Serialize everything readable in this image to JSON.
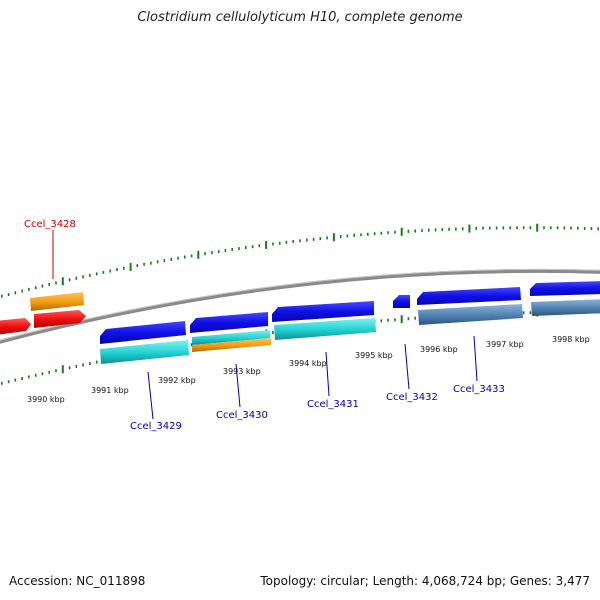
{
  "title": "Clostridium cellulolyticum H10, complete genome",
  "footer": {
    "accession": "Accession: NC_011898",
    "stats": "Topology: circular; Length: 4,068,724 bp; Genes: 3,477"
  },
  "kbp_labels": [
    "3990 kbp",
    "3991 kbp",
    "3992 kbp",
    "3993 kbp",
    "3994 kbp",
    "3995 kbp",
    "3996 kbp",
    "3997 kbp",
    "3998 kbp"
  ],
  "gene_labels": [
    {
      "name": "Ccel_3428",
      "color": "#cc0000"
    },
    {
      "name": "Ccel_3429",
      "color": "#0000aa"
    },
    {
      "name": "Ccel_3430",
      "color": "#0000aa"
    },
    {
      "name": "Ccel_3431",
      "color": "#0000aa"
    },
    {
      "name": "Ccel_3432",
      "color": "#0000aa"
    },
    {
      "name": "Ccel_3433",
      "color": "#0000aa"
    }
  ],
  "colors": {
    "backbone": "#8a8a8a",
    "tick": "#1a7a1a",
    "cds_forward": "#1a1aee",
    "cds_highlight": "#ee1111",
    "feature_cyan": "#20d0d0",
    "feature_orange": "#f09a10",
    "feature_steel": "#5080b0"
  }
}
